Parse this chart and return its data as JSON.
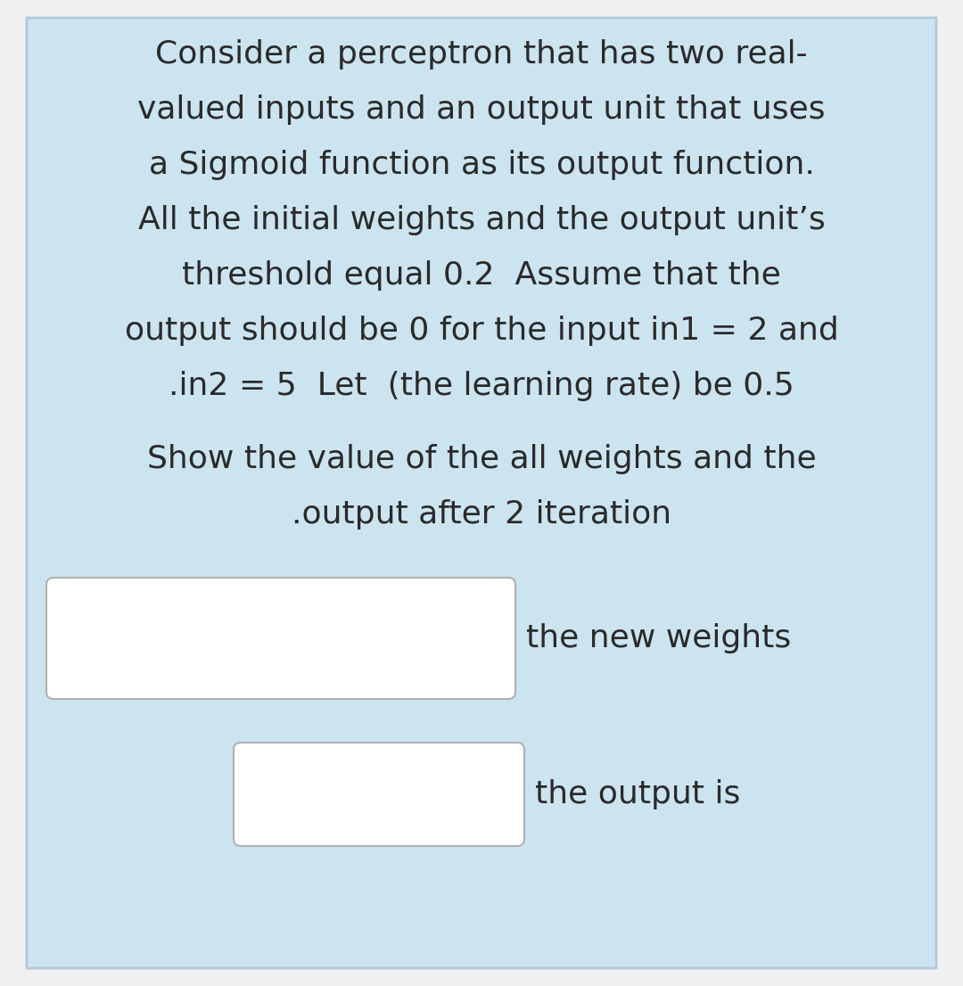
{
  "background_color": "#cce4f0",
  "outer_bg": "#f0f0f0",
  "text_color": "#2a2a2a",
  "title_lines": [
    "Consider a perceptron that has two real-",
    "valued inputs and an output unit that uses",
    "a Sigmoid function as its output function.",
    "All the initial weights and the output unit’s",
    "threshold equal 0.2  Assume that the",
    "output should be 0 for the input in1 = 2 and",
    ".in2 = 5  Let  (the learning rate) be 0.5"
  ],
  "subtitle_lines": [
    "Show the value of the all weights and the",
    ".output after 2 iteration"
  ],
  "label1": "the new weights",
  "label2": "the output is",
  "font_size_main": 26,
  "font_size_sub": 26,
  "font_size_label": 26,
  "card_bg": "#cce4f0",
  "card_edge": "#b0c8d8",
  "box_bg": "#ffffff",
  "box_edge": "#b0b0b0"
}
